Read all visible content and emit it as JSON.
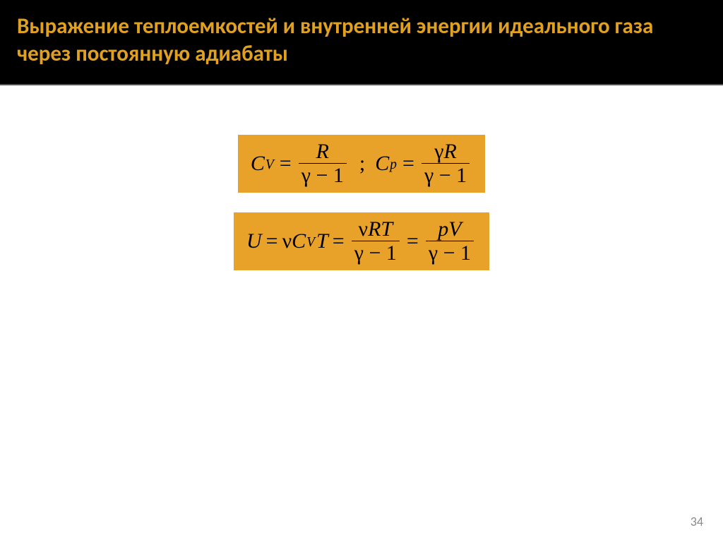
{
  "header": {
    "title": "Выражение теплоемкостей и внутренней энергии идеального газа через постоянную адиабаты"
  },
  "formulas": {
    "box1": {
      "cv_lhs_base": "C",
      "cv_lhs_sub": "V",
      "cv_num": "R",
      "cv_den_gamma": "γ",
      "cv_den_rest": " − 1",
      "separator": ";",
      "cp_lhs_base": "C",
      "cp_lhs_sub": "p",
      "cp_num_gamma": "γ",
      "cp_num_R": "R",
      "cp_den_gamma": "γ",
      "cp_den_rest": " − 1"
    },
    "box2": {
      "u_lhs": "U",
      "term1_nu": "ν",
      "term1_C": "C",
      "term1_sub": "V",
      "term1_T": "T",
      "frac1_num_nu": "ν",
      "frac1_num_RT": "RT",
      "frac1_den_gamma": "γ",
      "frac1_den_rest": " − 1",
      "frac2_num": "pV",
      "frac2_den_gamma": "γ",
      "frac2_den_rest": " − 1"
    }
  },
  "colors": {
    "header_bg": "#000000",
    "title_color": "#e0a020",
    "formula_bg": "#e8a22a",
    "text_color": "#000000",
    "page_bg": "#ffffff",
    "page_num_color": "#888888"
  },
  "typography": {
    "title_fontsize": 31,
    "formula_fontsize": 30,
    "formula_font": "Times New Roman"
  },
  "page_number": "34"
}
